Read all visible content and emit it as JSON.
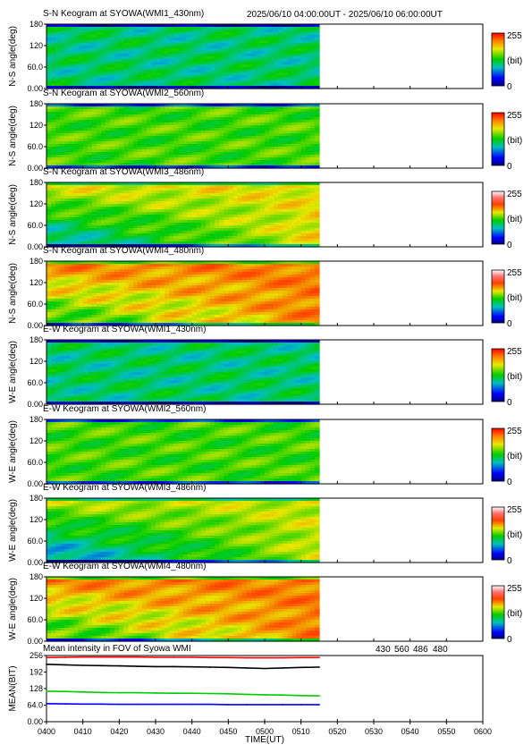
{
  "header": {
    "time_range": "2025/06/10 04:00:00UT - 2025/06/10 06:00:00UT"
  },
  "colorbar": {
    "max_label": "255",
    "unit_label": "(bit)",
    "min_label": "0"
  },
  "keograms": [
    {
      "title": "S-N Keogram at SYOWA(WMI1_430nm)",
      "ylabel": "N-S angle(deg)",
      "yticks": [
        "0.00",
        "60.0",
        "120",
        "180"
      ],
      "colormap": "rainbow",
      "base_level": 0.42,
      "data_end_time": "05:15"
    },
    {
      "title": "S-N Keogram at SYOWA(WMI2_560nm)",
      "ylabel": "N-S angle(deg)",
      "yticks": [
        "0.00",
        "60.0",
        "120",
        "180"
      ],
      "colormap": "rainbow",
      "base_level": 0.55,
      "data_end_time": "05:15"
    },
    {
      "title": "S-N Keogram at SYOWA(WMI3_486nm)",
      "ylabel": "N-S angle(deg)",
      "yticks": [
        "0.00",
        "60.0",
        "120",
        "180"
      ],
      "colormap": "white-red",
      "base_level": 0.35,
      "data_end_time": "05:15"
    },
    {
      "title": "S-N Keogram at SYOWA(WMI4_480nm)",
      "ylabel": "N-S angle(deg)",
      "yticks": [
        "0.00",
        "60.0",
        "120",
        "180"
      ],
      "colormap": "white-red",
      "base_level": 0.5,
      "data_end_time": "05:15"
    },
    {
      "title": "E-W Keogram at SYOWA(WMI1_430nm)",
      "ylabel": "W-E angle(deg)",
      "yticks": [
        "0.00",
        "60.0",
        "120",
        "180"
      ],
      "colormap": "rainbow",
      "base_level": 0.42,
      "data_end_time": "05:15"
    },
    {
      "title": "E-W Keogram at SYOWA(WMI2_560nm)",
      "ylabel": "W-E angle(deg)",
      "yticks": [
        "0.00",
        "60.0",
        "120",
        "180"
      ],
      "colormap": "rainbow",
      "base_level": 0.55,
      "data_end_time": "05:15"
    },
    {
      "title": "E-W Keogram at SYOWA(WMI3_486nm)",
      "ylabel": "W-E angle(deg)",
      "yticks": [
        "0.00",
        "60.0",
        "120",
        "180"
      ],
      "colormap": "white-red",
      "base_level": 0.3,
      "data_end_time": "05:15"
    },
    {
      "title": "E-W Keogram at SYOWA(WMI4_480nm)",
      "ylabel": "W-E angle(deg)",
      "yticks": [
        "0.00",
        "60.0",
        "120",
        "180"
      ],
      "colormap": "white-red",
      "base_level": 0.5,
      "data_end_time": "05:15"
    }
  ],
  "colors": {
    "c430": "#0000ff",
    "c560": "#00cc00",
    "c486": "#ff0000",
    "c480": "#000000"
  },
  "chart_data": {
    "type": "line",
    "title": "Mean intensity in FOV of Syowa WMI",
    "xlabel": "TIME(UT)",
    "ylabel": "MEAN(BIT)",
    "ylim": [
      0,
      256
    ],
    "yticks": [
      "0.00",
      "64.0",
      "128",
      "192",
      "256"
    ],
    "xlim": [
      "04:00",
      "06:00"
    ],
    "xticks": [
      "0400",
      "0410",
      "0420",
      "0430",
      "0440",
      "0450",
      "0500",
      "0510",
      "0520",
      "0530",
      "0540",
      "0550",
      "0600"
    ],
    "x": [
      "04:00",
      "04:05",
      "04:10",
      "04:15",
      "04:20",
      "04:25",
      "04:30",
      "04:35",
      "04:40",
      "04:45",
      "04:50",
      "04:55",
      "05:00",
      "05:05",
      "05:10",
      "05:15"
    ],
    "series": [
      {
        "name": "430",
        "color": "#0000ff",
        "values": [
          70,
          69,
          68,
          68,
          67,
          67,
          67,
          67,
          67,
          67,
          66,
          66,
          66,
          66,
          66,
          66
        ]
      },
      {
        "name": "560",
        "color": "#00cc00",
        "values": [
          118,
          117,
          115,
          113,
          112,
          112,
          111,
          110,
          110,
          109,
          108,
          106,
          104,
          103,
          101,
          100
        ]
      },
      {
        "name": "486",
        "color": "#ff0000",
        "values": [
          248,
          249,
          250,
          250,
          250,
          250,
          249,
          249,
          249,
          248,
          248,
          247,
          247,
          247,
          248,
          248
        ]
      },
      {
        "name": "480",
        "color": "#000000",
        "values": [
          222,
          220,
          218,
          217,
          216,
          214,
          213,
          213,
          212,
          211,
          210,
          208,
          206,
          208,
          210,
          211
        ]
      }
    ]
  }
}
